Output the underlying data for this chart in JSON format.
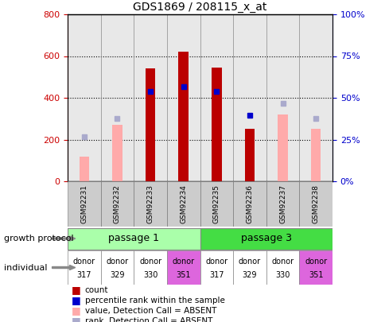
{
  "title": "GDS1869 / 208115_x_at",
  "samples": [
    "GSM92231",
    "GSM92232",
    "GSM92233",
    "GSM92234",
    "GSM92235",
    "GSM92236",
    "GSM92237",
    "GSM92238"
  ],
  "count_values": [
    0,
    0,
    540,
    620,
    545,
    250,
    0,
    0
  ],
  "count_absent": [
    true,
    true,
    false,
    false,
    false,
    false,
    true,
    true
  ],
  "pink_values": [
    120,
    270,
    0,
    0,
    0,
    0,
    320,
    250
  ],
  "blue_rank_values": [
    0,
    0,
    430,
    455,
    430,
    315,
    0,
    0
  ],
  "lightblue_rank_values": [
    215,
    300,
    0,
    0,
    0,
    0,
    375,
    300
  ],
  "ylim": [
    0,
    800
  ],
  "y2lim": [
    0,
    100
  ],
  "yticks": [
    0,
    200,
    400,
    600,
    800
  ],
  "ytick_labels": [
    "0",
    "200",
    "400",
    "600",
    "800"
  ],
  "y2ticks": [
    0,
    25,
    50,
    75,
    100
  ],
  "y2tick_labels": [
    "0%",
    "25%",
    "50%",
    "75%",
    "100%"
  ],
  "passage1_label": "passage 1",
  "passage3_label": "passage 3",
  "individual_labels_top": [
    "donor",
    "donor",
    "donor",
    "donor",
    "donor",
    "donor",
    "donor",
    "donor"
  ],
  "individual_labels_bot": [
    "317",
    "329",
    "330",
    "351",
    "317",
    "329",
    "330",
    "351"
  ],
  "ind_bg": [
    "#ffffff",
    "#ffffff",
    "#ffffff",
    "#dd66dd",
    "#ffffff",
    "#ffffff",
    "#ffffff",
    "#dd66dd"
  ],
  "growth_protocol_label": "growth protocol",
  "individual_row_label": "individual",
  "legend_items": [
    "count",
    "percentile rank within the sample",
    "value, Detection Call = ABSENT",
    "rank, Detection Call = ABSENT"
  ],
  "bar_color_red": "#bb0000",
  "bar_color_pink": "#ffaaaa",
  "bar_color_blue": "#0000cc",
  "bar_color_lightblue": "#aaaacc",
  "passage1_color": "#aaffaa",
  "passage3_color": "#44dd44",
  "bg_color": "#ffffff",
  "plot_bg": "#e8e8e8",
  "grid_dotted_color": "#000000"
}
